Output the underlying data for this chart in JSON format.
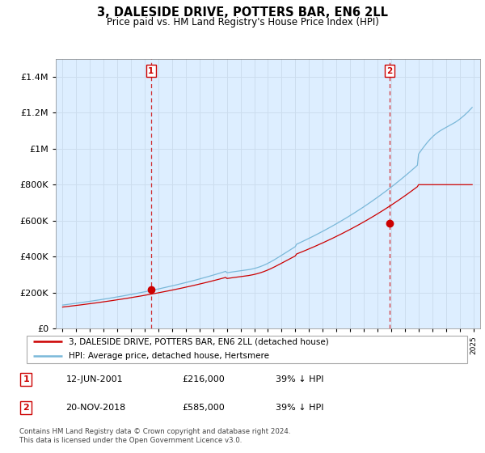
{
  "title": "3, DALESIDE DRIVE, POTTERS BAR, EN6 2LL",
  "subtitle": "Price paid vs. HM Land Registry's House Price Index (HPI)",
  "legend_line1": "3, DALESIDE DRIVE, POTTERS BAR, EN6 2LL (detached house)",
  "legend_line2": "HPI: Average price, detached house, Hertsmere",
  "annotation1_date": "12-JUN-2001",
  "annotation1_price": "£216,000",
  "annotation1_hpi": "39% ↓ HPI",
  "annotation2_date": "20-NOV-2018",
  "annotation2_price": "£585,000",
  "annotation2_hpi": "39% ↓ HPI",
  "footer": "Contains HM Land Registry data © Crown copyright and database right 2024.\nThis data is licensed under the Open Government Licence v3.0.",
  "ylim": [
    0,
    1500000
  ],
  "yticks": [
    0,
    200000,
    400000,
    600000,
    800000,
    1000000,
    1200000,
    1400000
  ],
  "hpi_color": "#7ab8d9",
  "price_color": "#cc0000",
  "vline_color": "#cc0000",
  "background_color": "#ffffff",
  "plot_bg_color": "#ddeeff",
  "grid_color": "#ccddee"
}
